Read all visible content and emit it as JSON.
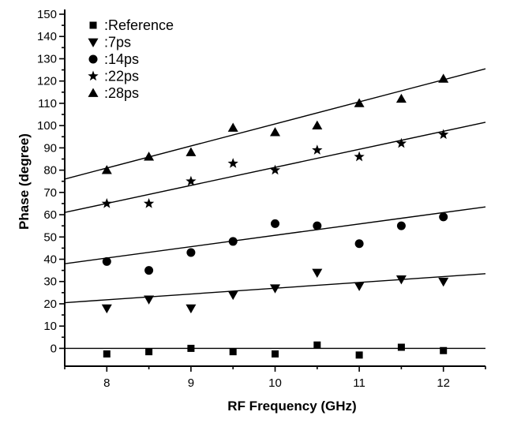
{
  "chart_data": {
    "type": "scatter",
    "title": "",
    "xlabel": "RF Frequency (GHz)",
    "ylabel": "Phase (degree)",
    "xlim": [
      7.5,
      12.5
    ],
    "ylim": [
      -8,
      150
    ],
    "xticks": [
      8,
      9,
      10,
      11,
      12
    ],
    "yticks": [
      0,
      10,
      20,
      30,
      40,
      50,
      60,
      70,
      80,
      90,
      100,
      110,
      120,
      130,
      140,
      150
    ],
    "grid": false,
    "legend_position": "top-left",
    "x": [
      8,
      8.5,
      9,
      9.5,
      10,
      10.5,
      11,
      11.5,
      12
    ],
    "series": [
      {
        "name": ":Reference",
        "marker": "square",
        "values": [
          -2.5,
          -1.5,
          0,
          -1.5,
          -2.5,
          1.5,
          -3,
          0.5,
          -1
        ],
        "fit": [
          0,
          0
        ]
      },
      {
        "name": ":7ps",
        "marker": "triangle-down",
        "values": [
          18,
          22,
          18,
          24,
          27,
          34,
          28,
          31,
          30
        ],
        "fit": [
          20.5,
          33.5
        ]
      },
      {
        "name": ":14ps",
        "marker": "circle",
        "values": [
          39,
          35,
          43,
          48,
          56,
          55,
          47,
          55,
          59
        ],
        "fit": [
          38,
          63.5
        ]
      },
      {
        "name": ":22ps",
        "marker": "star",
        "values": [
          65,
          65,
          75,
          83,
          80,
          89,
          86,
          92,
          96
        ],
        "fit": [
          61,
          101.5
        ]
      },
      {
        "name": ":28ps",
        "marker": "triangle-up",
        "values": [
          80,
          86,
          88,
          99,
          97,
          100,
          110,
          112,
          121
        ],
        "fit": [
          76,
          125.5
        ]
      }
    ]
  }
}
